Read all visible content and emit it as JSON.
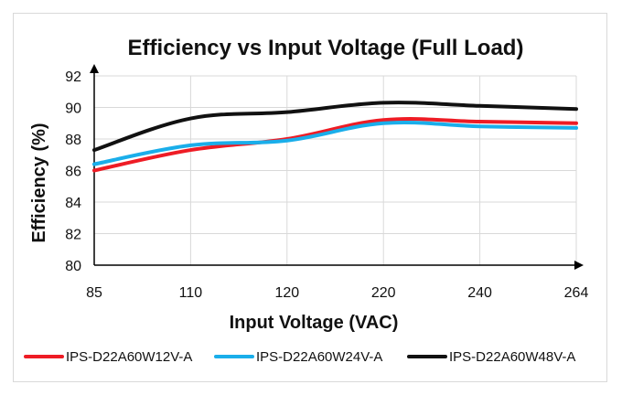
{
  "chart_data": {
    "type": "line",
    "title": "Efficiency vs Input Voltage (Full Load)",
    "xlabel": "Input Voltage (VAC)",
    "ylabel": "Efficiency (%)",
    "categories": [
      "85",
      "110",
      "120",
      "220",
      "240",
      "264"
    ],
    "ylim": [
      80,
      92
    ],
    "yticks": [
      80,
      82,
      84,
      86,
      88,
      90,
      92
    ],
    "grid": true,
    "legend": "bottom",
    "series": [
      {
        "name": "IPS-D22A60W12V-A",
        "color": "#ee1c25",
        "values": [
          86.0,
          87.3,
          88.0,
          89.2,
          89.1,
          89.0
        ]
      },
      {
        "name": "IPS-D22A60W24V-A",
        "color": "#1aaeea",
        "values": [
          86.4,
          87.6,
          87.9,
          89.0,
          88.8,
          88.7
        ]
      },
      {
        "name": "IPS-D22A60W48V-A",
        "color": "#111111",
        "values": [
          87.3,
          89.3,
          89.7,
          90.3,
          90.1,
          89.9
        ]
      }
    ]
  }
}
